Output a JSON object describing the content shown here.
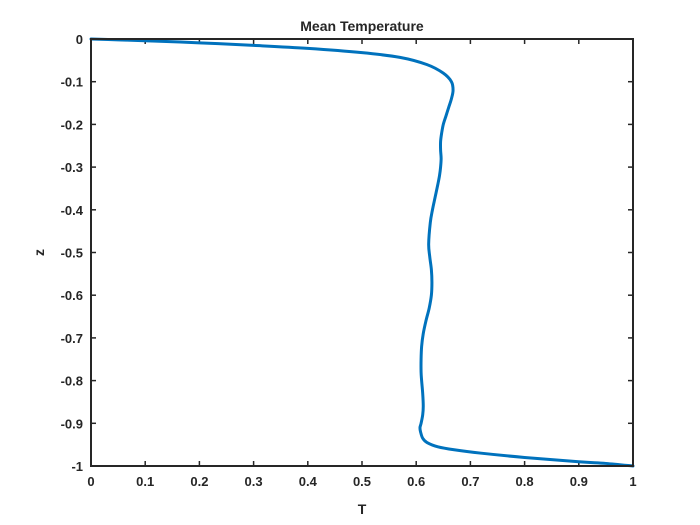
{
  "chart_data": {
    "type": "line",
    "title": "Mean Temperature",
    "xlabel": "T",
    "ylabel": "z",
    "xlim": [
      0,
      1
    ],
    "ylim": [
      -1,
      0
    ],
    "grid": false,
    "legend": "none",
    "xticks": [
      0,
      0.1,
      0.2,
      0.3,
      0.4,
      0.5,
      0.6,
      0.7,
      0.8,
      0.9,
      1
    ],
    "xtick_labels": [
      "0",
      "0.1",
      "0.2",
      "0.3",
      "0.4",
      "0.5",
      "0.6",
      "0.7",
      "0.8",
      "0.9",
      "1"
    ],
    "yticks": [
      0,
      -0.1,
      -0.2,
      -0.3,
      -0.4,
      -0.5,
      -0.6,
      -0.7,
      -0.8,
      -0.9,
      -1
    ],
    "ytick_labels": [
      "0",
      "-0.1",
      "-0.2",
      "-0.3",
      "-0.4",
      "-0.5",
      "-0.6",
      "-0.7",
      "-0.8",
      "-0.9",
      "-1"
    ],
    "series": [
      {
        "color": "#0072BD",
        "x": [
          0,
          0.05,
          0.1,
          0.2,
          0.3,
          0.4,
          0.5,
          0.57,
          0.62,
          0.65,
          0.665,
          0.668,
          0.665,
          0.66,
          0.655,
          0.65,
          0.647,
          0.645,
          0.645,
          0.646,
          0.645,
          0.643,
          0.64,
          0.635,
          0.63,
          0.626,
          0.623,
          0.625,
          0.628,
          0.629,
          0.628,
          0.624,
          0.618,
          0.613,
          0.61,
          0.609,
          0.609,
          0.61,
          0.612,
          0.613,
          0.612,
          0.609,
          0.607,
          0.608,
          0.612,
          0.62,
          0.64,
          0.67,
          0.72,
          0.8,
          0.9,
          0.95,
          1
        ],
        "y": [
          0,
          -0.002,
          -0.004,
          -0.009,
          -0.015,
          -0.022,
          -0.032,
          -0.043,
          -0.06,
          -0.08,
          -0.1,
          -0.12,
          -0.14,
          -0.16,
          -0.18,
          -0.2,
          -0.22,
          -0.24,
          -0.26,
          -0.28,
          -0.3,
          -0.32,
          -0.34,
          -0.37,
          -0.4,
          -0.43,
          -0.48,
          -0.51,
          -0.54,
          -0.57,
          -0.6,
          -0.63,
          -0.66,
          -0.69,
          -0.72,
          -0.75,
          -0.78,
          -0.8,
          -0.83,
          -0.86,
          -0.88,
          -0.9,
          -0.91,
          -0.92,
          -0.935,
          -0.945,
          -0.955,
          -0.962,
          -0.97,
          -0.98,
          -0.99,
          -0.994,
          -1
        ]
      }
    ]
  }
}
